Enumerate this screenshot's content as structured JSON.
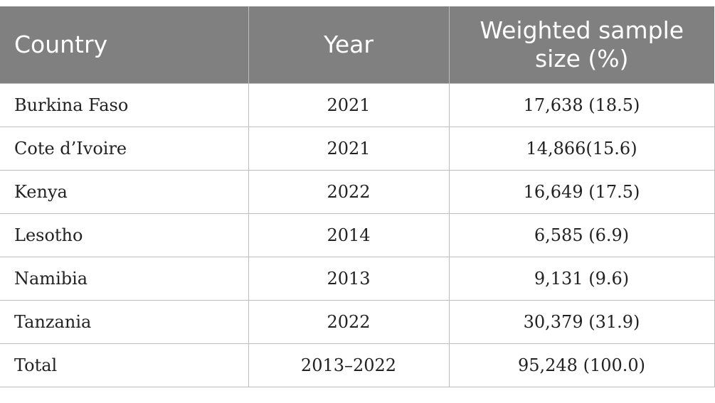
{
  "table": {
    "headers": [
      "Country",
      "Year",
      "Weighted sample size (%)"
    ],
    "header_line1": "Weighted sample",
    "header_line2": "size (%)",
    "rows": [
      {
        "country": "Burkina Faso",
        "year": "2021",
        "size": "17,638 (18.5)"
      },
      {
        "country": "Cote d’Ivoire",
        "year": "2021",
        "size": "14,866(15.6)"
      },
      {
        "country": "Kenya",
        "year": "2022",
        "size": "16,649 (17.5)"
      },
      {
        "country": "Lesotho",
        "year": "2014",
        "size": "6,585 (6.9)"
      },
      {
        "country": "Namibia",
        "year": "2013",
        "size": "9,131 (9.6)"
      },
      {
        "country": "Tanzania",
        "year": "2022",
        "size": "30,379 (31.9)"
      },
      {
        "country": "Total",
        "year": "2013–2022",
        "size": "95,248 (100.0)"
      }
    ]
  },
  "colors": {
    "header_bg": "#808080",
    "header_text": "#ffffff",
    "grid": "#bdbdbd"
  }
}
